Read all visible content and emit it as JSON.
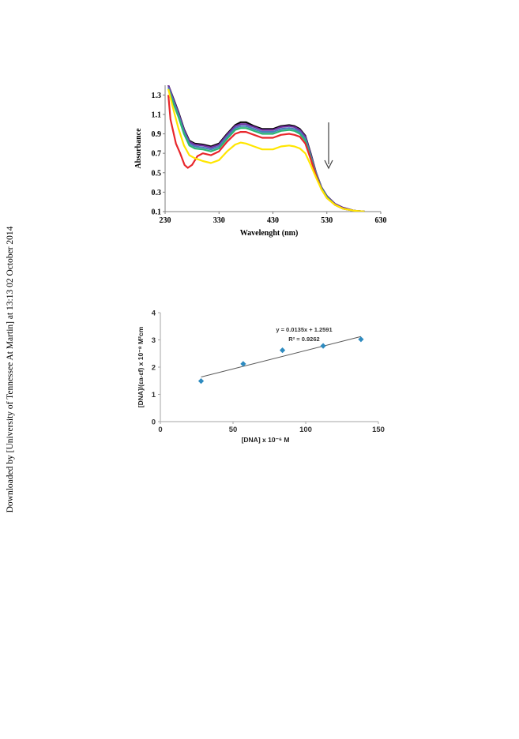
{
  "side_note": "Downloaded by [University of Tennessee At Martin] at 13:13 02 October 2014",
  "chart_data": [
    {
      "type": "line",
      "xlabel": "Wavelenght (nm)",
      "ylabel": "Absorbance",
      "xlim": [
        230,
        630
      ],
      "ylim": [
        0.1,
        1.4
      ],
      "xticks": [
        230,
        330,
        430,
        530,
        630
      ],
      "yticks": [
        0.1,
        0.3,
        0.5,
        0.7,
        0.9,
        1.1,
        1.3
      ],
      "xtick_labels": [
        "230",
        "330",
        "430",
        "530",
        "630"
      ],
      "ytick_labels": [
        "0.1",
        "0.3",
        "0.5",
        "0.7",
        "0.9",
        "1.1",
        "1.3"
      ],
      "grid": false,
      "annotation": "arrow pointing down (absorbance decreases with added DNA)",
      "series": [
        {
          "color": "#000000",
          "x": [
            236,
            245,
            255,
            265,
            275,
            285,
            300,
            315,
            330,
            345,
            360,
            370,
            380,
            395,
            410,
            430,
            445,
            460,
            470,
            480,
            490,
            500,
            510,
            520,
            530,
            545,
            560,
            580,
            600
          ],
          "y": [
            1.4,
            1.27,
            1.12,
            0.95,
            0.83,
            0.8,
            0.79,
            0.77,
            0.8,
            0.9,
            0.99,
            1.02,
            1.02,
            0.98,
            0.95,
            0.95,
            0.98,
            0.99,
            0.98,
            0.95,
            0.88,
            0.7,
            0.5,
            0.35,
            0.26,
            0.18,
            0.14,
            0.11,
            0.1
          ]
        },
        {
          "color": "#7030a0",
          "x": [
            236,
            245,
            255,
            265,
            275,
            285,
            300,
            315,
            330,
            345,
            360,
            370,
            380,
            395,
            410,
            430,
            445,
            460,
            470,
            480,
            490,
            500,
            510,
            520,
            530,
            545,
            560,
            580,
            600
          ],
          "y": [
            1.4,
            1.26,
            1.11,
            0.94,
            0.82,
            0.79,
            0.78,
            0.76,
            0.79,
            0.89,
            0.98,
            1.0,
            1.0,
            0.97,
            0.94,
            0.94,
            0.97,
            0.98,
            0.97,
            0.94,
            0.87,
            0.69,
            0.5,
            0.35,
            0.26,
            0.18,
            0.14,
            0.11,
            0.1
          ]
        },
        {
          "color": "#4a7ebb",
          "x": [
            236,
            245,
            255,
            265,
            275,
            285,
            300,
            315,
            330,
            345,
            360,
            370,
            380,
            395,
            410,
            430,
            445,
            460,
            470,
            480,
            490,
            500,
            510,
            520,
            530,
            545,
            560,
            580,
            600
          ],
          "y": [
            1.38,
            1.24,
            1.09,
            0.92,
            0.8,
            0.77,
            0.76,
            0.74,
            0.77,
            0.87,
            0.96,
            0.98,
            0.98,
            0.95,
            0.92,
            0.92,
            0.95,
            0.96,
            0.95,
            0.92,
            0.85,
            0.67,
            0.49,
            0.34,
            0.25,
            0.17,
            0.13,
            0.11,
            0.1
          ]
        },
        {
          "color": "#2bb673",
          "x": [
            236,
            245,
            255,
            265,
            275,
            285,
            300,
            315,
            330,
            345,
            360,
            370,
            380,
            395,
            410,
            430,
            445,
            460,
            470,
            480,
            490,
            500,
            510,
            520,
            530,
            545,
            560,
            580,
            600
          ],
          "y": [
            1.36,
            1.22,
            1.07,
            0.9,
            0.78,
            0.75,
            0.74,
            0.72,
            0.75,
            0.85,
            0.94,
            0.96,
            0.96,
            0.93,
            0.9,
            0.9,
            0.93,
            0.94,
            0.93,
            0.9,
            0.83,
            0.66,
            0.48,
            0.34,
            0.25,
            0.17,
            0.13,
            0.11,
            0.1
          ]
        },
        {
          "color": "#e8262b",
          "x": [
            236,
            240,
            250,
            258,
            266,
            272,
            280,
            290,
            300,
            315,
            330,
            345,
            360,
            370,
            380,
            395,
            410,
            430,
            445,
            460,
            470,
            480,
            490,
            500,
            510,
            520,
            530,
            545,
            560,
            580,
            600
          ],
          "y": [
            1.3,
            1.05,
            0.8,
            0.7,
            0.58,
            0.55,
            0.58,
            0.67,
            0.7,
            0.68,
            0.72,
            0.82,
            0.9,
            0.92,
            0.92,
            0.89,
            0.86,
            0.86,
            0.89,
            0.9,
            0.89,
            0.87,
            0.8,
            0.64,
            0.47,
            0.33,
            0.24,
            0.17,
            0.13,
            0.11,
            0.1
          ]
        },
        {
          "color": "#ffe600",
          "x": [
            236,
            245,
            255,
            265,
            275,
            285,
            300,
            315,
            330,
            345,
            360,
            370,
            380,
            395,
            410,
            430,
            445,
            460,
            470,
            480,
            490,
            500,
            510,
            520,
            530,
            545,
            560,
            580,
            600
          ],
          "y": [
            1.36,
            1.16,
            0.95,
            0.78,
            0.68,
            0.65,
            0.62,
            0.6,
            0.63,
            0.72,
            0.79,
            0.81,
            0.8,
            0.77,
            0.74,
            0.74,
            0.77,
            0.78,
            0.77,
            0.75,
            0.7,
            0.58,
            0.45,
            0.33,
            0.24,
            0.17,
            0.13,
            0.11,
            0.1
          ]
        }
      ]
    },
    {
      "type": "scatter",
      "xlabel": "[DNA] x 10⁻⁶ M",
      "ylabel": "[DNA]/(εa-εf) x 10⁻⁸ M²cm",
      "xlim": [
        0,
        150
      ],
      "ylim": [
        0,
        4
      ],
      "xticks": [
        0,
        50,
        100,
        150
      ],
      "yticks": [
        0,
        1,
        2,
        3,
        4
      ],
      "xtick_labels": [
        "0",
        "50",
        "100",
        "150"
      ],
      "ytick_labels": [
        "0",
        "1",
        "2",
        "3",
        "4"
      ],
      "grid": false,
      "points_color": "#2e8bc0",
      "x": [
        28,
        57,
        84,
        112,
        138
      ],
      "y": [
        1.49,
        2.12,
        2.62,
        2.78,
        3.02
      ],
      "trendline": {
        "slope": 0.0135,
        "intercept": 1.2591,
        "x_range": [
          28,
          138
        ]
      },
      "equation": "y = 0.0135x + 1.2591",
      "r2_label": "R² = 0.9262"
    }
  ]
}
